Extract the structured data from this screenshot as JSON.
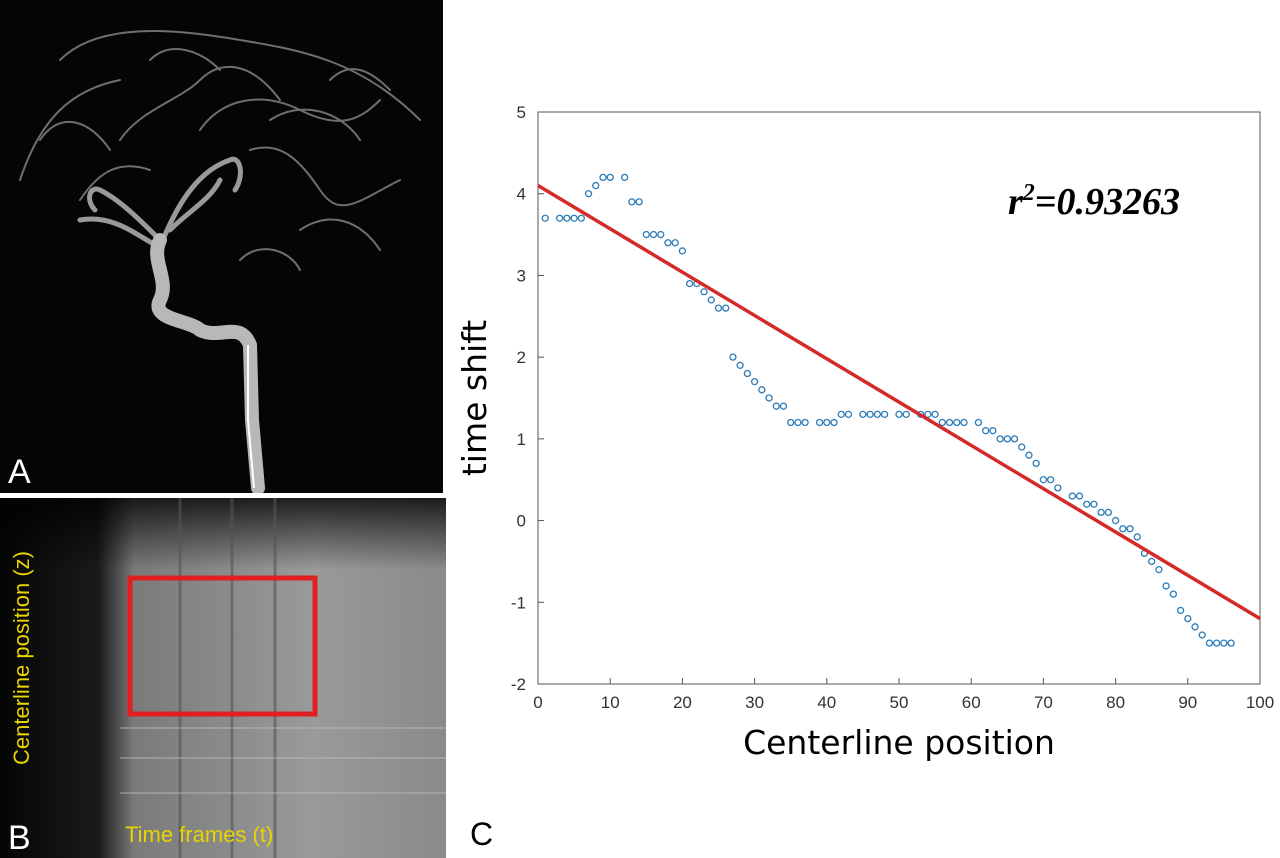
{
  "panels": {
    "a": {
      "letter": "A"
    },
    "b": {
      "letter": "B",
      "ylabel": "Centerline position (z)",
      "xlabel": "Time frames (t)"
    },
    "c": {
      "letter": "C"
    }
  },
  "colors": {
    "marker": "#2b7bb9",
    "fit_line": "#d42a2a",
    "roi_box": "#e02020",
    "label_yellow": "#e8d400"
  },
  "chart_data": {
    "type": "scatter",
    "title": "",
    "xlabel": "Centerline position",
    "ylabel": "time shift",
    "xlim": [
      0,
      100
    ],
    "ylim": [
      -2,
      5
    ],
    "xticks": [
      0,
      10,
      20,
      30,
      40,
      50,
      60,
      70,
      80,
      90,
      100
    ],
    "yticks": [
      -2,
      -1,
      0,
      1,
      2,
      3,
      4,
      5
    ],
    "grid": false,
    "annotation": {
      "base": "r",
      "sup": "2",
      "rest": "=0.93263"
    },
    "series": [
      {
        "kind": "points",
        "x": [
          1,
          3,
          4,
          5,
          6,
          7,
          8,
          9,
          10,
          12,
          13,
          14,
          15,
          16,
          17,
          18,
          19,
          20,
          21,
          22,
          23,
          24,
          25,
          26,
          27,
          28,
          29,
          30,
          31,
          32,
          33,
          34,
          35,
          36,
          37,
          39,
          40,
          41,
          42,
          43,
          45,
          46,
          47,
          48,
          50,
          51,
          53,
          54,
          55,
          56,
          57,
          58,
          59,
          61,
          62,
          63,
          64,
          65,
          66,
          67,
          68,
          69,
          70,
          71,
          72,
          74,
          75,
          76,
          77,
          78,
          79,
          80,
          81,
          82,
          83,
          84,
          85,
          86,
          87,
          88,
          89,
          90,
          91,
          92,
          93,
          94,
          95,
          96
        ],
        "y": [
          3.7,
          3.7,
          3.7,
          3.7,
          3.7,
          4.0,
          4.1,
          4.2,
          4.2,
          4.2,
          3.9,
          3.9,
          3.5,
          3.5,
          3.5,
          3.4,
          3.4,
          3.3,
          2.9,
          2.9,
          2.8,
          2.7,
          2.6,
          2.6,
          2.0,
          1.9,
          1.8,
          1.7,
          1.6,
          1.5,
          1.4,
          1.4,
          1.2,
          1.2,
          1.2,
          1.2,
          1.2,
          1.2,
          1.3,
          1.3,
          1.3,
          1.3,
          1.3,
          1.3,
          1.3,
          1.3,
          1.3,
          1.3,
          1.3,
          1.2,
          1.2,
          1.2,
          1.2,
          1.2,
          1.1,
          1.1,
          1.0,
          1.0,
          1.0,
          0.9,
          0.8,
          0.7,
          0.5,
          0.5,
          0.4,
          0.3,
          0.3,
          0.2,
          0.2,
          0.1,
          0.1,
          0.0,
          -0.1,
          -0.1,
          -0.2,
          -0.4,
          -0.5,
          -0.6,
          -0.8,
          -0.9,
          -1.1,
          -1.2,
          -1.3,
          -1.4,
          -1.5,
          -1.5,
          -1.5,
          -1.5
        ]
      },
      {
        "kind": "fit",
        "x": [
          0,
          100
        ],
        "y": [
          4.1,
          -1.2
        ]
      }
    ]
  }
}
